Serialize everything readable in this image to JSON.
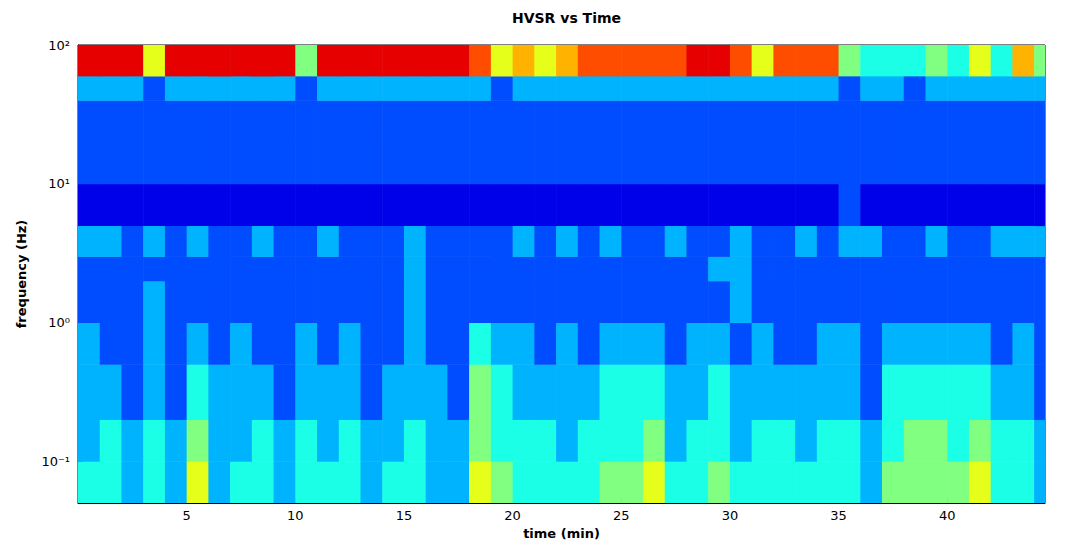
{
  "chart_data": {
    "type": "heatmap",
    "title": "HVSR vs Time",
    "x_label": "time (min)",
    "y_label": "frequency (Hz)",
    "log": "y",
    "grid": false,
    "xlim": [
      0,
      44.5
    ],
    "ylim": [
      0.05,
      100
    ],
    "xticks": [
      5,
      10,
      15,
      20,
      25,
      30,
      35,
      40
    ],
    "yticks": [
      {
        "value": 0.1,
        "label": "10⁻¹"
      },
      {
        "value": 1,
        "label": "10⁰"
      },
      {
        "value": 10,
        "label": "10¹"
      },
      {
        "value": 100,
        "label": "10²"
      }
    ],
    "zlim": [
      0,
      10
    ],
    "x_edges": [
      0,
      1,
      2,
      3,
      4,
      5,
      6,
      7,
      8,
      9,
      10,
      11,
      12,
      13,
      14,
      15,
      16,
      17,
      18,
      19,
      20,
      21,
      22,
      23,
      24,
      25,
      26,
      27,
      28,
      29,
      30,
      31,
      32,
      33,
      34,
      35,
      36,
      37,
      38,
      39,
      40,
      41,
      42,
      43,
      44,
      44.5
    ],
    "y_edges": [
      0.05,
      0.1,
      0.2,
      0.5,
      1,
      2,
      3,
      5,
      10,
      20,
      40,
      60,
      100
    ],
    "cells": [
      [
        4,
        4,
        3,
        4,
        3,
        6,
        3,
        4,
        4,
        3,
        4,
        4,
        4,
        3,
        4,
        4,
        3,
        3,
        6,
        5,
        4,
        4,
        4,
        4,
        5,
        5,
        6,
        4,
        4,
        5,
        4,
        4,
        4,
        4,
        4,
        4,
        3,
        5,
        5,
        5,
        5,
        6,
        4,
        4,
        3
      ],
      [
        3,
        4,
        3,
        4,
        3,
        5,
        3,
        3,
        4,
        3,
        4,
        3,
        4,
        3,
        3,
        4,
        3,
        3,
        5,
        4,
        4,
        4,
        3,
        4,
        4,
        4,
        5,
        3,
        4,
        4,
        3,
        4,
        4,
        3,
        4,
        4,
        3,
        4,
        5,
        5,
        4,
        5,
        4,
        4,
        3
      ],
      [
        3,
        3,
        2,
        3,
        2,
        4,
        3,
        3,
        3,
        2,
        3,
        3,
        3,
        2,
        3,
        3,
        3,
        2,
        5,
        4,
        3,
        3,
        3,
        3,
        4,
        4,
        4,
        3,
        3,
        4,
        3,
        3,
        3,
        3,
        3,
        3,
        2,
        4,
        4,
        4,
        4,
        4,
        3,
        3,
        2
      ],
      [
        3,
        2,
        2,
        3,
        2,
        3,
        2,
        3,
        2,
        2,
        3,
        2,
        3,
        2,
        2,
        3,
        2,
        2,
        4,
        3,
        3,
        2,
        3,
        2,
        3,
        3,
        3,
        2,
        3,
        3,
        2,
        3,
        2,
        2,
        3,
        3,
        2,
        3,
        3,
        3,
        3,
        3,
        2,
        3,
        2
      ],
      [
        2,
        2,
        2,
        3,
        2,
        2,
        2,
        2,
        2,
        2,
        2,
        2,
        2,
        2,
        2,
        3,
        2,
        2,
        2,
        2,
        2,
        2,
        2,
        2,
        2,
        2,
        2,
        2,
        2,
        2,
        3,
        2,
        2,
        2,
        2,
        2,
        2,
        2,
        2,
        2,
        2,
        2,
        2,
        2,
        2
      ],
      [
        2,
        2,
        2,
        2,
        2,
        2,
        2,
        2,
        2,
        2,
        2,
        2,
        2,
        2,
        2,
        3,
        2,
        2,
        2,
        2,
        2,
        2,
        2,
        2,
        2,
        2,
        2,
        2,
        2,
        3,
        3,
        2,
        2,
        2,
        2,
        2,
        2,
        2,
        2,
        2,
        2,
        2,
        2,
        2,
        2
      ],
      [
        3,
        3,
        2,
        3,
        2,
        3,
        2,
        2,
        3,
        2,
        2,
        3,
        2,
        2,
        2,
        3,
        2,
        2,
        2,
        2,
        3,
        2,
        3,
        2,
        3,
        2,
        2,
        3,
        2,
        2,
        3,
        2,
        2,
        3,
        2,
        3,
        3,
        2,
        2,
        3,
        2,
        2,
        3,
        3,
        3
      ],
      [
        1,
        1,
        1,
        1,
        1,
        1,
        1,
        1,
        1,
        1,
        1,
        1,
        1,
        1,
        1,
        1,
        1,
        1,
        1,
        1,
        1,
        1,
        1,
        1,
        1,
        1,
        1,
        1,
        1,
        1,
        1,
        1,
        1,
        1,
        1,
        2,
        1,
        1,
        1,
        1,
        1,
        1,
        1,
        1,
        1
      ],
      [
        2,
        2,
        2,
        2,
        2,
        2,
        2,
        2,
        2,
        2,
        2,
        2,
        2,
        2,
        2,
        2,
        2,
        2,
        2,
        2,
        2,
        2,
        2,
        2,
        2,
        2,
        2,
        2,
        2,
        2,
        2,
        2,
        2,
        2,
        2,
        2,
        2,
        2,
        2,
        2,
        2,
        2,
        2,
        2,
        2
      ],
      [
        2,
        2,
        2,
        2,
        2,
        2,
        2,
        2,
        2,
        2,
        2,
        2,
        2,
        2,
        2,
        2,
        2,
        2,
        2,
        2,
        2,
        2,
        2,
        2,
        2,
        2,
        2,
        2,
        2,
        2,
        2,
        2,
        2,
        2,
        2,
        2,
        2,
        2,
        2,
        2,
        2,
        2,
        2,
        2,
        2
      ],
      [
        3,
        3,
        3,
        2,
        3,
        3,
        3,
        3,
        3,
        3,
        2,
        3,
        3,
        3,
        3,
        3,
        3,
        3,
        3,
        2,
        3,
        3,
        3,
        3,
        3,
        3,
        3,
        3,
        3,
        3,
        3,
        3,
        3,
        3,
        3,
        2,
        3,
        3,
        2,
        3,
        3,
        3,
        3,
        3,
        3
      ],
      [
        9,
        9,
        9,
        6,
        9,
        9,
        9,
        9,
        9,
        9,
        5,
        9,
        9,
        9,
        9,
        9,
        9,
        9,
        8,
        6,
        7,
        6,
        7,
        8,
        8,
        8,
        8,
        8,
        9,
        9,
        8,
        6,
        8,
        8,
        8,
        5,
        4,
        4,
        4,
        5,
        4,
        6,
        4,
        7,
        5
      ]
    ]
  }
}
